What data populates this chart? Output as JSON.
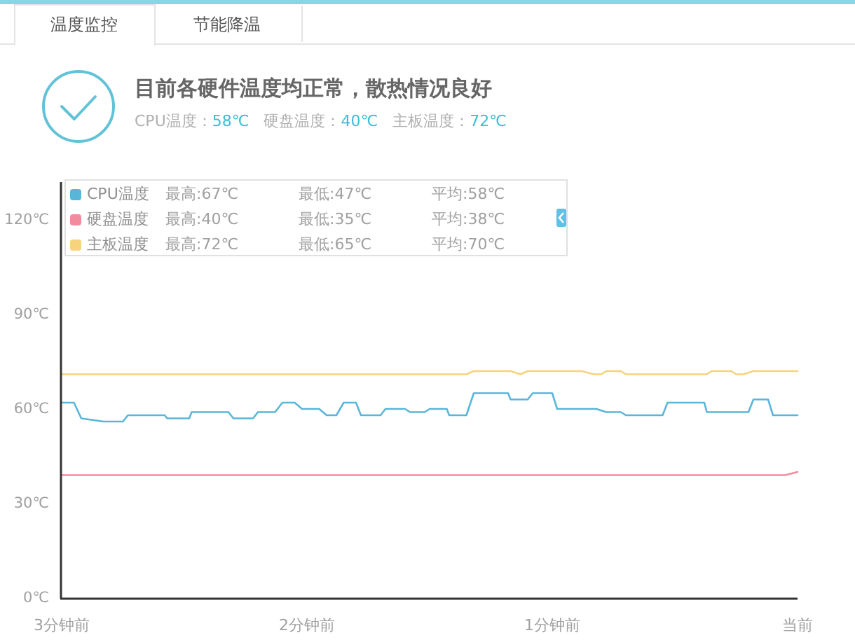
{
  "chart_data": {
    "type": "line",
    "title": "目前各硬件温度均正常，散热情况良好",
    "subtitle": "CPU温度：58℃   硬盘温度：40℃   主板温度：72℃",
    "annotations": [
      "温度监控",
      "节能降温",
      "最高:67℃",
      "最低:47℃",
      "平均:58℃",
      "最高:40℃",
      "最低:35℃",
      "平均:38℃",
      "最高:72℃",
      "最低:65℃",
      "平均:70℃"
    ],
    "series": [
      {
        "name": "CPU温度",
        "color": "#5ab6d8",
        "x": [
          3,
          2.95,
          2.92,
          2.83,
          2.75,
          2.73,
          2.58,
          2.57,
          2.48,
          2.47,
          2.32,
          2.3,
          2.22,
          2.2,
          2.13,
          2.1,
          2.05,
          2.02,
          1.95,
          1.92,
          1.88,
          1.85,
          1.8,
          1.78,
          1.7,
          1.68,
          1.6,
          1.58,
          1.52,
          1.5,
          1.43,
          1.42,
          1.35,
          1.32,
          1.18,
          1.17,
          1.1,
          1.08,
          1,
          0.98,
          0.82,
          0.78,
          0.72,
          0.7,
          0.55,
          0.53,
          0.38,
          0.37,
          0.2,
          0.18,
          0.12,
          0.1,
          0
        ],
        "values": [
          62,
          62,
          57,
          56,
          56,
          58,
          58,
          57,
          57,
          59,
          59,
          57,
          57,
          59,
          59,
          62,
          62,
          60,
          60,
          58,
          58,
          62,
          62,
          58,
          58,
          60,
          60,
          59,
          59,
          60,
          60,
          58,
          58,
          65,
          65,
          63,
          63,
          65,
          65,
          60,
          60,
          59,
          59,
          58,
          58,
          62,
          62,
          59,
          59,
          63,
          63,
          58,
          58
        ]
      },
      {
        "name": "硬盘温度",
        "color": "#f08c9e",
        "x": [
          3,
          0.05,
          0
        ],
        "values": [
          39,
          39,
          40
        ]
      },
      {
        "name": "主板温度",
        "color": "#f6d37c",
        "x": [
          3,
          1.35,
          1.32,
          1.17,
          1.13,
          1.1,
          0.88,
          0.83,
          0.8,
          0.78,
          0.72,
          0.7,
          0.37,
          0.35,
          0.27,
          0.25,
          0.22,
          0.18,
          0
        ],
        "values": [
          71,
          71,
          72,
          72,
          71,
          72,
          72,
          71,
          71,
          72,
          72,
          71,
          71,
          72,
          72,
          71,
          71,
          72,
          72
        ]
      }
    ],
    "xlim": [
      3,
      0
    ],
    "xticks": [
      {
        "value": 3,
        "label": "3分钟前"
      },
      {
        "value": 2,
        "label": "2分钟前"
      },
      {
        "value": 1,
        "label": "1分钟前"
      },
      {
        "value": 0,
        "label": "当前"
      }
    ],
    "ylim": [
      0,
      132
    ],
    "yticks": [
      {
        "value": 0,
        "label": "0℃"
      },
      {
        "value": 30,
        "label": "30℃"
      },
      {
        "value": 60,
        "label": "60℃"
      },
      {
        "value": 90,
        "label": "90℃"
      },
      {
        "value": 120,
        "label": "120℃"
      }
    ],
    "legend": "top left",
    "line_style": "solid"
  }
}
